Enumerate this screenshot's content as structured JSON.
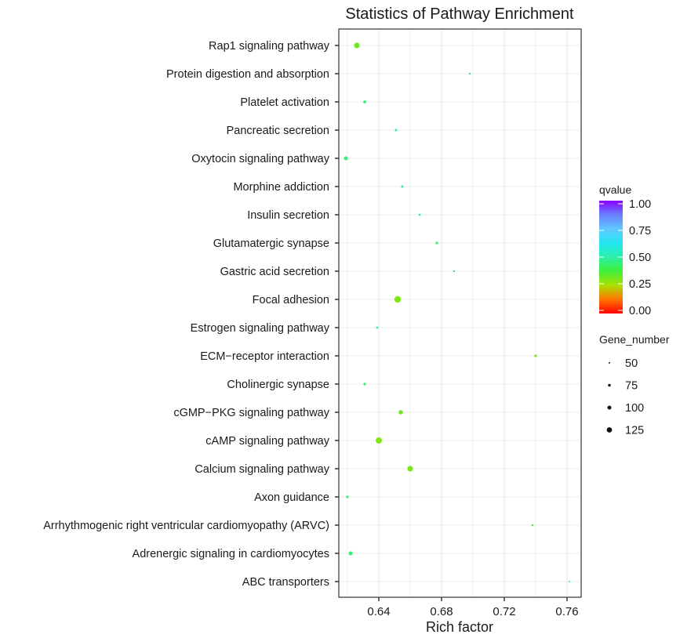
{
  "chart_data": {
    "type": "scatter",
    "title": "Statistics of Pathway Enrichment",
    "xlabel": "Rich factor",
    "ylabel": "",
    "xlim": [
      0.6145,
      0.769
    ],
    "x_ticks": [
      0.64,
      0.68,
      0.72,
      0.76
    ],
    "x_tick_labels": [
      "0.64",
      "0.68",
      "0.72",
      "0.76"
    ],
    "grid": true,
    "points": [
      {
        "pathway": "Rap1 signaling pathway",
        "rich_factor": 0.626,
        "qvalue": 0.32,
        "gene_number": 110
      },
      {
        "pathway": "Protein digestion and absorption",
        "rich_factor": 0.698,
        "qvalue": 0.47,
        "gene_number": 52
      },
      {
        "pathway": "Platelet activation",
        "rich_factor": 0.631,
        "qvalue": 0.45,
        "gene_number": 66
      },
      {
        "pathway": "Pancreatic secretion",
        "rich_factor": 0.651,
        "qvalue": 0.47,
        "gene_number": 56
      },
      {
        "pathway": "Oxytocin signaling pathway",
        "rich_factor": 0.619,
        "qvalue": 0.45,
        "gene_number": 82
      },
      {
        "pathway": "Morphine addiction",
        "rich_factor": 0.655,
        "qvalue": 0.47,
        "gene_number": 56
      },
      {
        "pathway": "Insulin secretion",
        "rich_factor": 0.666,
        "qvalue": 0.47,
        "gene_number": 54
      },
      {
        "pathway": "Glutamatergic synapse",
        "rich_factor": 0.677,
        "qvalue": 0.45,
        "gene_number": 62
      },
      {
        "pathway": "Gastric acid secretion",
        "rich_factor": 0.688,
        "qvalue": 0.47,
        "gene_number": 50
      },
      {
        "pathway": "Focal adhesion",
        "rich_factor": 0.652,
        "qvalue": 0.3,
        "gene_number": 125
      },
      {
        "pathway": "Estrogen signaling pathway",
        "rich_factor": 0.639,
        "qvalue": 0.47,
        "gene_number": 55
      },
      {
        "pathway": "ECM−receptor interaction",
        "rich_factor": 0.74,
        "qvalue": 0.3,
        "gene_number": 62
      },
      {
        "pathway": "Cholinergic synapse",
        "rich_factor": 0.631,
        "qvalue": 0.45,
        "gene_number": 62
      },
      {
        "pathway": "cGMP−PKG signaling pathway",
        "rich_factor": 0.654,
        "qvalue": 0.32,
        "gene_number": 90
      },
      {
        "pathway": "cAMP signaling pathway",
        "rich_factor": 0.64,
        "qvalue": 0.3,
        "gene_number": 120
      },
      {
        "pathway": "Calcium signaling pathway",
        "rich_factor": 0.66,
        "qvalue": 0.3,
        "gene_number": 110
      },
      {
        "pathway": "Axon guidance",
        "rich_factor": 0.62,
        "qvalue": 0.45,
        "gene_number": 62
      },
      {
        "pathway": "Arrhythmogenic right ventricular cardiomyopathy (ARVC)",
        "rich_factor": 0.738,
        "qvalue": 0.4,
        "gene_number": 50
      },
      {
        "pathway": "Adrenergic signaling in cardiomyocytes",
        "rich_factor": 0.622,
        "qvalue": 0.45,
        "gene_number": 82
      },
      {
        "pathway": "ABC transporters",
        "rich_factor": 0.7615,
        "qvalue": 0.5,
        "gene_number": 45
      }
    ],
    "legend_color": {
      "title": "qvalue",
      "ticks": [
        1.0,
        0.75,
        0.5,
        0.25,
        0.0
      ],
      "tick_labels": [
        "1.00",
        "0.75",
        "0.50",
        "0.25",
        "0.00"
      ],
      "placement": "right"
    },
    "legend_size": {
      "title": "Gene_number",
      "values": [
        50,
        75,
        100,
        125
      ],
      "labels": [
        "50",
        "75",
        "100",
        "125"
      ],
      "placement": "right"
    }
  }
}
